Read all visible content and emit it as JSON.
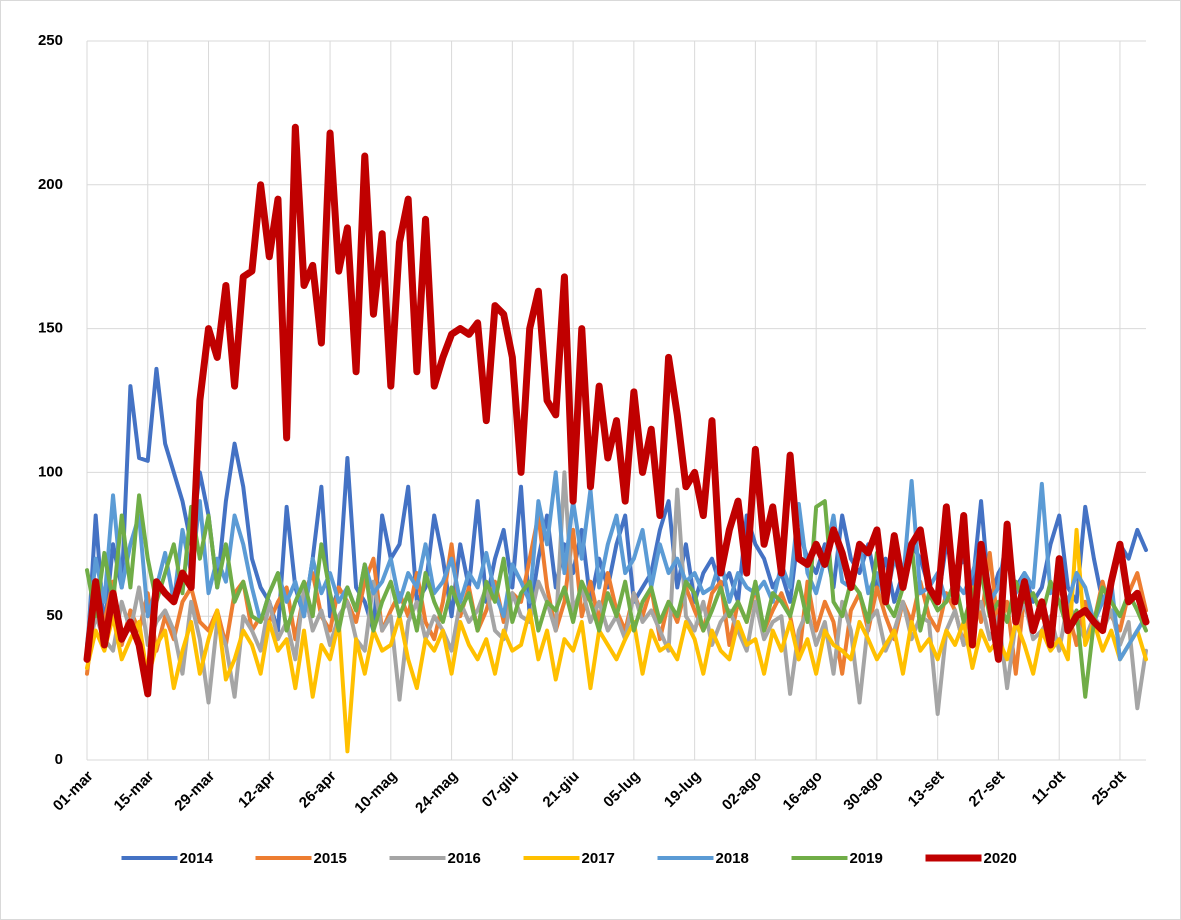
{
  "chart_data": {
    "type": "line",
    "categories": [
      "01-mar",
      null,
      null,
      null,
      null,
      null,
      null,
      "15-mar",
      null,
      null,
      null,
      null,
      null,
      null,
      "29-mar",
      null,
      null,
      null,
      null,
      null,
      null,
      "12-apr",
      null,
      null,
      null,
      null,
      null,
      null,
      "26-apr",
      null,
      null,
      null,
      null,
      null,
      null,
      "10-mag",
      null,
      null,
      null,
      null,
      null,
      null,
      "24-mag",
      null,
      null,
      null,
      null,
      null,
      null,
      "07-giu",
      null,
      null,
      null,
      null,
      null,
      null,
      "21-giu",
      null,
      null,
      null,
      null,
      null,
      null,
      "05-lug",
      null,
      null,
      null,
      null,
      null,
      null,
      "19-lug",
      null,
      null,
      null,
      null,
      null,
      null,
      "02-ago",
      null,
      null,
      null,
      null,
      null,
      null,
      "16-ago",
      null,
      null,
      null,
      null,
      null,
      null,
      "30-ago",
      null,
      null,
      null,
      null,
      null,
      null,
      "13-set",
      null,
      null,
      null,
      null,
      null,
      null,
      "27-set",
      null,
      null,
      null,
      null,
      null,
      null,
      "11-ott",
      null,
      null,
      null,
      null,
      null,
      null,
      "25-ott",
      null,
      null,
      null
    ],
    "ylim": [
      0,
      250
    ],
    "yticks": [
      0,
      50,
      100,
      150,
      200,
      250
    ],
    "grid": true,
    "legend": "bottom",
    "series": [
      {
        "name": "2014",
        "color": "#4472c4",
        "values": [
          35,
          85,
          45,
          75,
          60,
          130,
          105,
          104,
          136,
          110,
          100,
          90,
          75,
          100,
          85,
          60,
          90,
          110,
          95,
          70,
          60,
          55,
          45,
          88,
          60,
          50,
          70,
          95,
          50,
          60,
          105,
          60,
          55,
          45,
          85,
          70,
          75,
          95,
          55,
          60,
          85,
          70,
          50,
          75,
          60,
          90,
          55,
          70,
          80,
          60,
          95,
          50,
          70,
          85,
          60,
          75,
          65,
          80,
          55,
          70,
          60,
          75,
          85,
          55,
          60,
          65,
          80,
          90,
          60,
          75,
          55,
          65,
          70,
          60,
          65,
          55,
          85,
          75,
          70,
          60,
          65,
          55,
          80,
          70,
          65,
          75,
          60,
          85,
          70,
          65,
          75,
          60,
          70,
          55,
          65,
          75,
          70,
          60,
          55,
          75,
          65,
          70,
          60,
          90,
          55,
          65,
          70,
          60,
          65,
          55,
          60,
          75,
          85,
          60,
          55,
          88,
          70,
          55,
          60,
          75,
          70,
          80,
          73
        ]
      },
      {
        "name": "2015",
        "color": "#ed7d31",
        "values": [
          30,
          55,
          48,
          62,
          40,
          52,
          45,
          58,
          38,
          50,
          42,
          55,
          60,
          48,
          45,
          52,
          40,
          58,
          62,
          45,
          50,
          48,
          55,
          60,
          42,
          58,
          65,
          50,
          45,
          60,
          55,
          48,
          62,
          70,
          45,
          52,
          58,
          50,
          65,
          48,
          42,
          55,
          75,
          50,
          60,
          45,
          52,
          62,
          48,
          58,
          55,
          70,
          85,
          60,
          45,
          55,
          80,
          50,
          62,
          48,
          65,
          52,
          45,
          58,
          50,
          60,
          42,
          55,
          48,
          60,
          52,
          45,
          58,
          62,
          40,
          55,
          48,
          60,
          45,
          52,
          58,
          50,
          35,
          62,
          45,
          55,
          48,
          30,
          52,
          58,
          45,
          60,
          50,
          42,
          55,
          48,
          62,
          50,
          45,
          58,
          52,
          40,
          60,
          48,
          72,
          45,
          55,
          30,
          58,
          48,
          50,
          45,
          60,
          52,
          40,
          55,
          48,
          62,
          50,
          45,
          58,
          65,
          52
        ]
      },
      {
        "name": "2016",
        "color": "#a5a5a5",
        "values": [
          35,
          50,
          42,
          38,
          55,
          45,
          60,
          40,
          48,
          52,
          45,
          30,
          55,
          42,
          20,
          48,
          40,
          22,
          50,
          45,
          38,
          55,
          42,
          48,
          35,
          60,
          45,
          52,
          40,
          50,
          55,
          42,
          38,
          62,
          45,
          50,
          21,
          48,
          55,
          42,
          50,
          45,
          38,
          55,
          48,
          52,
          60,
          45,
          42,
          58,
          50,
          48,
          62,
          55,
          45,
          100,
          52,
          60,
          48,
          55,
          45,
          50,
          42,
          58,
          48,
          52,
          45,
          38,
          94,
          50,
          45,
          55,
          40,
          48,
          52,
          45,
          38,
          55,
          42,
          48,
          50,
          23,
          45,
          52,
          40,
          48,
          30,
          55,
          45,
          20,
          48,
          52,
          38,
          45,
          55,
          42,
          50,
          48,
          16,
          45,
          52,
          40,
          48,
          55,
          42,
          50,
          25,
          48,
          55,
          42,
          45,
          50,
          38,
          55,
          48,
          42,
          50,
          45,
          52,
          40,
          48,
          18,
          38
        ]
      },
      {
        "name": "2017",
        "color": "#ffc000",
        "values": [
          32,
          45,
          38,
          50,
          35,
          42,
          48,
          28,
          40,
          45,
          25,
          38,
          48,
          30,
          42,
          52,
          28,
          35,
          45,
          40,
          30,
          48,
          38,
          42,
          25,
          45,
          22,
          40,
          35,
          48,
          3,
          42,
          30,
          45,
          38,
          40,
          50,
          35,
          25,
          42,
          38,
          45,
          30,
          48,
          40,
          35,
          42,
          30,
          45,
          38,
          40,
          52,
          35,
          45,
          28,
          42,
          38,
          48,
          25,
          45,
          40,
          35,
          42,
          48,
          30,
          45,
          38,
          40,
          35,
          48,
          42,
          30,
          45,
          38,
          35,
          48,
          40,
          42,
          30,
          45,
          38,
          48,
          35,
          42,
          30,
          45,
          40,
          38,
          35,
          48,
          42,
          35,
          40,
          45,
          30,
          48,
          38,
          42,
          35,
          45,
          40,
          48,
          32,
          45,
          38,
          42,
          35,
          48,
          40,
          30,
          45,
          38,
          42,
          35,
          80,
          40,
          48,
          38,
          45,
          35,
          40,
          45,
          35
        ]
      },
      {
        "name": "2018",
        "color": "#5b9bd5",
        "values": [
          40,
          70,
          55,
          92,
          60,
          75,
          85,
          50,
          60,
          72,
          55,
          80,
          65,
          90,
          58,
          70,
          62,
          85,
          75,
          60,
          48,
          58,
          65,
          55,
          62,
          50,
          70,
          58,
          65,
          55,
          60,
          52,
          68,
          58,
          62,
          70,
          55,
          65,
          60,
          75,
          58,
          62,
          70,
          55,
          65,
          60,
          72,
          58,
          50,
          68,
          62,
          55,
          90,
          75,
          100,
          65,
          90,
          70,
          94,
          60,
          75,
          85,
          65,
          70,
          80,
          60,
          75,
          65,
          70,
          62,
          65,
          58,
          60,
          70,
          55,
          65,
          60,
          58,
          62,
          55,
          68,
          60,
          89,
          65,
          58,
          70,
          85,
          62,
          60,
          75,
          58,
          65,
          55,
          70,
          62,
          97,
          58,
          60,
          65,
          55,
          62,
          58,
          65,
          75,
          55,
          60,
          78,
          58,
          65,
          60,
          96,
          58,
          62,
          55,
          65,
          60,
          48,
          55,
          62,
          35,
          40,
          45,
          50
        ]
      },
      {
        "name": "2019",
        "color": "#70ad47",
        "values": [
          66,
          50,
          72,
          55,
          85,
          60,
          92,
          70,
          55,
          65,
          75,
          58,
          88,
          70,
          85,
          60,
          75,
          55,
          62,
          50,
          48,
          58,
          65,
          45,
          55,
          62,
          50,
          75,
          58,
          45,
          60,
          52,
          68,
          45,
          55,
          62,
          50,
          58,
          45,
          65,
          55,
          48,
          60,
          52,
          58,
          45,
          62,
          55,
          70,
          48,
          58,
          62,
          45,
          55,
          52,
          60,
          48,
          62,
          55,
          45,
          58,
          50,
          62,
          45,
          55,
          60,
          48,
          55,
          50,
          62,
          58,
          45,
          52,
          60,
          50,
          55,
          48,
          62,
          45,
          58,
          55,
          50,
          62,
          48,
          88,
          90,
          55,
          50,
          62,
          58,
          48,
          72,
          55,
          50,
          60,
          75,
          45,
          58,
          52,
          55,
          62,
          48,
          58,
          65,
          50,
          55,
          48,
          62,
          55,
          58,
          50,
          62,
          55,
          45,
          52,
          22,
          48,
          60,
          55,
          50,
          58,
          52,
          45
        ]
      },
      {
        "name": "2020",
        "color": "#c00000",
        "values": [
          35,
          62,
          40,
          58,
          42,
          48,
          40,
          23,
          62,
          58,
          55,
          65,
          60,
          125,
          150,
          140,
          165,
          130,
          168,
          170,
          200,
          175,
          195,
          112,
          220,
          165,
          172,
          145,
          218,
          170,
          185,
          135,
          210,
          155,
          183,
          130,
          180,
          195,
          135,
          188,
          130,
          140,
          148,
          150,
          148,
          152,
          118,
          158,
          155,
          140,
          100,
          150,
          163,
          125,
          120,
          168,
          90,
          150,
          95,
          130,
          105,
          118,
          90,
          128,
          100,
          115,
          85,
          140,
          120,
          95,
          100,
          85,
          118,
          65,
          80,
          90,
          65,
          108,
          75,
          88,
          65,
          106,
          70,
          68,
          75,
          68,
          80,
          72,
          60,
          75,
          72,
          80,
          55,
          78,
          60,
          75,
          80,
          60,
          55,
          88,
          55,
          85,
          40,
          75,
          55,
          35,
          82,
          48,
          62,
          45,
          55,
          40,
          70,
          45,
          50,
          52,
          48,
          45,
          62,
          75,
          55,
          58,
          48
        ]
      }
    ]
  }
}
